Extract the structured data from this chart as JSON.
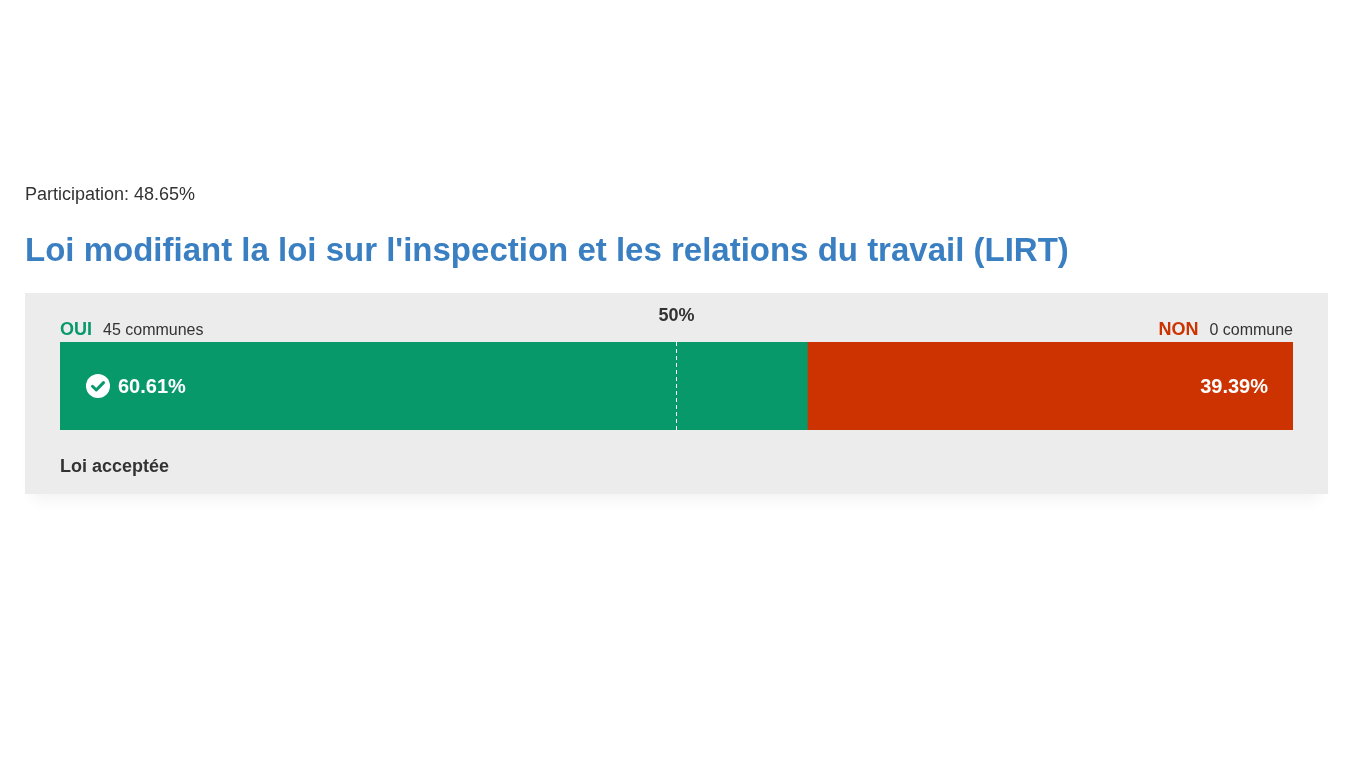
{
  "chart_data": {
    "type": "bar",
    "orientation": "horizontal",
    "stacked": true,
    "subtitle": "Participation: 48.65%",
    "title": "Loi modifiant la loi sur l'inspection et les relations du travail (LIRT)",
    "categories": [
      null
    ],
    "series": [
      {
        "name": "OUI",
        "color": "#07996a",
        "values": [
          60.61
        ],
        "value_labels": [
          "60.61%"
        ]
      },
      {
        "name": "NON",
        "color": "#cc3300",
        "values": [
          39.39
        ],
        "value_labels": [
          "39.39%"
        ]
      }
    ],
    "xlim": [
      0,
      100
    ],
    "tick_labels": false,
    "ref_lines": [
      {
        "axis": "x",
        "value": 50,
        "label": "50%",
        "color": "#ffffff",
        "line_style": "dashed"
      }
    ],
    "annotations": [
      "45 communes",
      "0 commune",
      "Loi acceptée"
    ]
  }
}
